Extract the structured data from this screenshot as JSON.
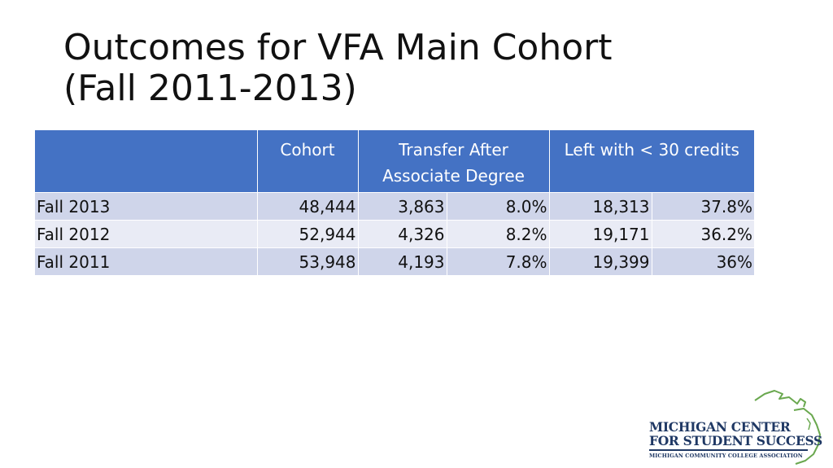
{
  "title": {
    "line1": "Outcomes for VFA Main Cohort",
    "line2": "(Fall 2011-2013)"
  },
  "table": {
    "headers": [
      "",
      "Cohort",
      "Transfer After Associate Degree",
      "Left with < 30 credits"
    ],
    "rows": [
      {
        "label": "Fall 2013",
        "cohort": "48,444",
        "transfer": "3,863",
        "transfer_pct": "8.0%",
        "left": "18,313",
        "left_pct": "37.8%"
      },
      {
        "label": "Fall 2012",
        "cohort": "52,944",
        "transfer": "4,326",
        "transfer_pct": "8.2%",
        "left": "19,171",
        "left_pct": "36.2%"
      },
      {
        "label": "Fall 2011",
        "cohort": "53,948",
        "transfer": "4,193",
        "transfer_pct": "7.8%",
        "left": "19,399",
        "left_pct": "36%"
      }
    ]
  },
  "logo": {
    "line1": "MICHIGAN CENTER",
    "line2": "FOR STUDENT SUCCESS",
    "line3": "MICHIGAN COMMUNITY COLLEGE ASSOCIATION",
    "icon": "michigan-map-outline-icon"
  },
  "colors": {
    "header_bg": "#4472c4",
    "row_dark": "#cfd5ea",
    "row_light": "#e9ebf5",
    "logo_navy": "#1f3864",
    "logo_green": "#6aa84f"
  }
}
